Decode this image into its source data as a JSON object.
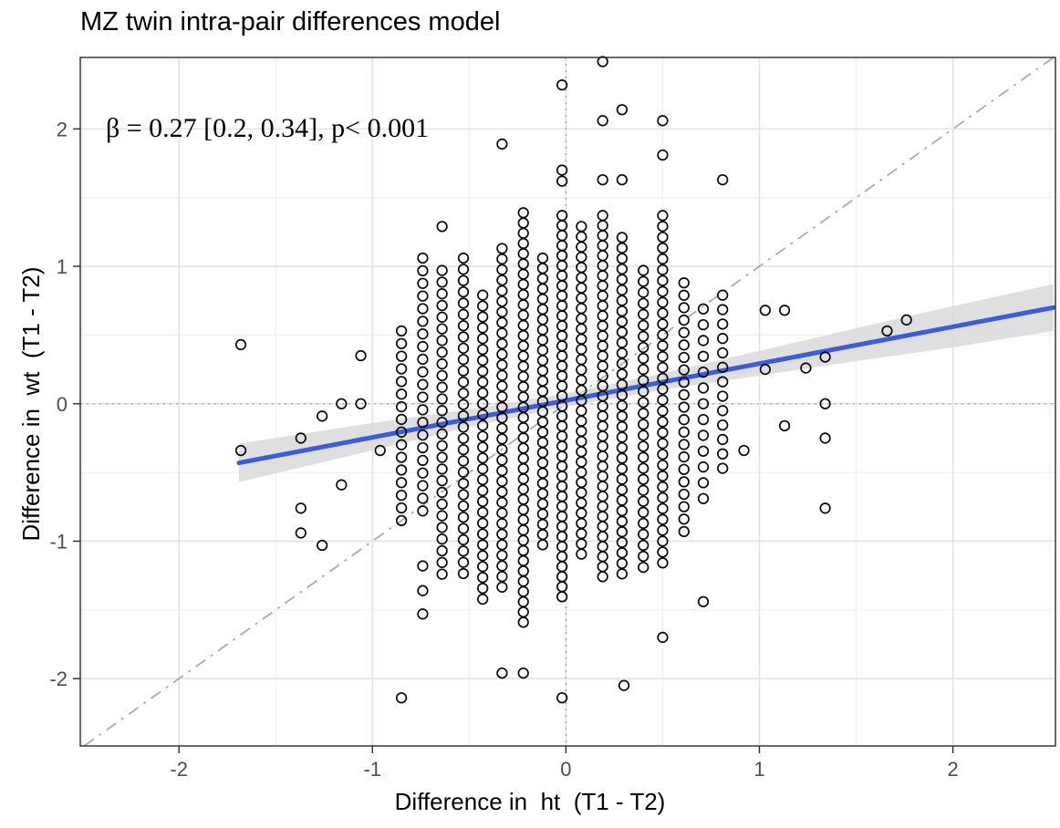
{
  "chart_data": {
    "type": "scatter",
    "title": "MZ twin intra-pair differences model",
    "annotation": "β = 0.27 [0.2, 0.34], p< 0.001",
    "xlabel": "Difference in  ht  (T1 - T2)",
    "ylabel": "Difference in  wt  (T1 - T2)",
    "xlim": [
      -2.51,
      2.53
    ],
    "ylim": [
      -2.49,
      2.52
    ],
    "x_ticks": [
      -2,
      -1,
      0,
      1,
      2
    ],
    "y_ticks": [
      -2,
      -1,
      0,
      1,
      2
    ],
    "x_minor": [
      -2.5,
      -1.5,
      -0.5,
      0.5,
      1.5,
      2.5
    ],
    "y_minor": [
      2.5,
      1.5,
      0.5,
      -0.5,
      -1.5
    ],
    "zero_lines": {
      "x": 0,
      "y": 0
    },
    "identity_line": {
      "from": [
        -2.49,
        -2.49
      ],
      "to": [
        2.52,
        2.52
      ]
    },
    "regression": {
      "beta": 0.27,
      "ci_low": 0.2,
      "ci_high": 0.34,
      "p": "< 0.001",
      "x_from": -1.69,
      "x_to": 2.52,
      "y_from": -0.43,
      "y_to": 0.7
    },
    "ribbon": [
      [
        -1.69,
        -0.57,
        -0.29
      ],
      [
        -1.0,
        -0.34,
        -0.14
      ],
      [
        -0.5,
        -0.17,
        -0.04
      ],
      [
        0.0,
        -0.021,
        0.075
      ],
      [
        0.5,
        0.1,
        0.22
      ],
      [
        1.0,
        0.205,
        0.385
      ],
      [
        1.5,
        0.31,
        0.55
      ],
      [
        2.0,
        0.41,
        0.71
      ],
      [
        2.52,
        0.53,
        0.87
      ]
    ],
    "point_columns": [
      {
        "x": -0.85,
        "y_top": 0.53,
        "y_bottom": -0.85,
        "step": 0.092
      },
      {
        "x": -0.74,
        "y_top": 1.06,
        "y_bottom": -0.85,
        "step": 0.092
      },
      {
        "x": -0.64,
        "y_top": 0.97,
        "y_bottom": -1.28,
        "step": 0.085
      },
      {
        "x": -0.53,
        "y_top": 1.06,
        "y_bottom": -1.28,
        "step": 0.082
      },
      {
        "x": -0.43,
        "y_top": 0.79,
        "y_bottom": -1.45,
        "step": 0.079
      },
      {
        "x": -0.33,
        "y_top": 1.13,
        "y_bottom": -1.36,
        "step": 0.077
      },
      {
        "x": -0.22,
        "y_top": 1.39,
        "y_bottom": -1.62,
        "step": 0.0745
      },
      {
        "x": -0.12,
        "y_top": 1.06,
        "y_bottom": -1.03,
        "step": 0.0745
      },
      {
        "x": -0.02,
        "y_top": 1.37,
        "y_bottom": -1.44,
        "step": 0.073
      },
      {
        "x": 0.08,
        "y_top": 1.29,
        "y_bottom": -1.11,
        "step": 0.0745
      },
      {
        "x": 0.19,
        "y_top": 1.37,
        "y_bottom": -1.28,
        "step": 0.073
      },
      {
        "x": 0.29,
        "y_top": 1.21,
        "y_bottom": -1.28,
        "step": 0.0765
      },
      {
        "x": 0.4,
        "y_top": 0.97,
        "y_bottom": -1.19,
        "step": 0.08
      },
      {
        "x": 0.5,
        "y_top": 1.37,
        "y_bottom": -1.2,
        "step": 0.079
      },
      {
        "x": 0.61,
        "y_top": 0.88,
        "y_bottom": -0.93,
        "step": 0.0905
      },
      {
        "x": 0.71,
        "y_top": 0.69,
        "y_bottom": -0.8,
        "step": 0.115
      },
      {
        "x": 0.81,
        "y_top": 0.79,
        "y_bottom": -0.57,
        "step": 0.105
      }
    ],
    "extra_points": [
      [
        -1.68,
        0.43
      ],
      [
        -1.68,
        -0.34
      ],
      [
        -1.37,
        -0.25
      ],
      [
        -1.37,
        -0.76
      ],
      [
        -1.37,
        -0.94
      ],
      [
        -1.26,
        -0.09
      ],
      [
        -1.26,
        -1.03
      ],
      [
        -1.16,
        0.0
      ],
      [
        -1.16,
        -0.59
      ],
      [
        -1.06,
        0.35
      ],
      [
        -1.06,
        0.0
      ],
      [
        -0.96,
        -0.34
      ],
      [
        -0.85,
        -2.14
      ],
      [
        -0.74,
        -1.18
      ],
      [
        -0.74,
        -1.36
      ],
      [
        -0.74,
        -1.53
      ],
      [
        -0.64,
        1.29
      ],
      [
        -0.33,
        1.89
      ],
      [
        -0.33,
        -1.96
      ],
      [
        -0.22,
        -1.96
      ],
      [
        -0.02,
        2.32
      ],
      [
        -0.02,
        1.7
      ],
      [
        -0.02,
        1.62
      ],
      [
        -0.02,
        -2.14
      ],
      [
        0.19,
        2.49
      ],
      [
        0.19,
        2.06
      ],
      [
        0.19,
        1.63
      ],
      [
        0.29,
        2.14
      ],
      [
        0.29,
        1.63
      ],
      [
        0.3,
        -2.05
      ],
      [
        0.5,
        2.06
      ],
      [
        0.5,
        1.81
      ],
      [
        0.5,
        -1.7
      ],
      [
        0.71,
        -1.44
      ],
      [
        0.81,
        1.63
      ],
      [
        0.92,
        -0.34
      ],
      [
        1.03,
        0.68
      ],
      [
        1.03,
        0.25
      ],
      [
        1.13,
        0.68
      ],
      [
        1.13,
        -0.16
      ],
      [
        1.24,
        0.26
      ],
      [
        1.34,
        0.34
      ],
      [
        1.34,
        0.0
      ],
      [
        1.34,
        -0.25
      ],
      [
        1.34,
        -0.76
      ],
      [
        1.66,
        0.53
      ],
      [
        1.76,
        0.61
      ]
    ],
    "colors": {
      "regression_line": "#3C5BE0",
      "ribbon": "#d9d9d9",
      "point_stroke": "#0a0a0a",
      "major_grid": "#e3e3e3",
      "minor_grid": "#f1f1f1",
      "zero_dotted": "#aaaaaa",
      "identity": "#ababab",
      "panel_border": "#2b2b2b",
      "tick_label": "#4d4d4d",
      "background": "#ffffff"
    },
    "legend": null,
    "grid": "on"
  }
}
